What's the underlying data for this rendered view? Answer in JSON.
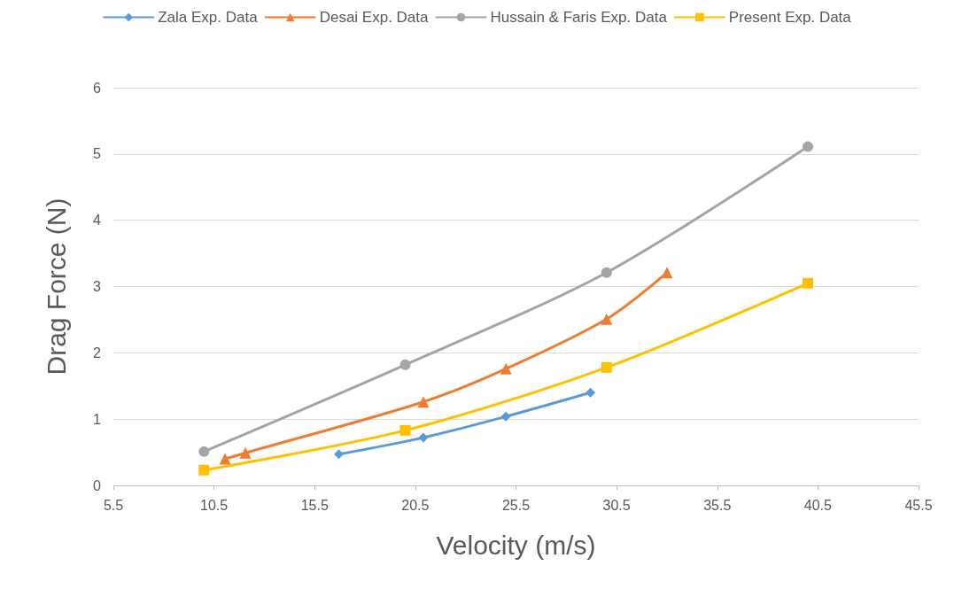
{
  "chart_data": {
    "type": "line",
    "xlabel": "Velocity (m/s)",
    "ylabel": "Drag Force (N)",
    "xlim": [
      5.5,
      45.5
    ],
    "xticks": [
      5.5,
      10.5,
      15.5,
      20.5,
      25.5,
      30.5,
      35.5,
      40.5,
      45.5
    ],
    "ylim": [
      0,
      6
    ],
    "yticks": [
      0,
      1,
      2,
      3,
      4,
      5,
      6
    ],
    "grid": "y",
    "legend": "top",
    "line_style": "solid",
    "series": [
      {
        "name": "Zala Exp. Data",
        "color": "#5b9bd5",
        "marker": "diamond",
        "x": [
          16.7,
          20.9,
          25.0,
          29.2
        ],
        "values": [
          0.47,
          0.72,
          1.04,
          1.4
        ]
      },
      {
        "name": "Desai Exp. Data",
        "color": "#ed7d31",
        "marker": "triangle",
        "x": [
          11.05,
          12.06,
          20.9,
          25.0,
          30.0,
          33.0
        ],
        "values": [
          0.4,
          0.49,
          1.26,
          1.76,
          2.51,
          3.21
        ]
      },
      {
        "name": "Hussain & Faris Exp. Data",
        "color": "#a5a5a5",
        "marker": "circle",
        "x": [
          10.0,
          20.0,
          30.0,
          40.0
        ],
        "values": [
          0.51,
          1.82,
          3.21,
          5.11
        ]
      },
      {
        "name": "Present Exp. Data",
        "color": "#ffc000",
        "marker": "square",
        "x": [
          10.0,
          20.0,
          30.0,
          40.0
        ],
        "values": [
          0.23,
          0.83,
          1.78,
          3.05
        ]
      }
    ]
  }
}
